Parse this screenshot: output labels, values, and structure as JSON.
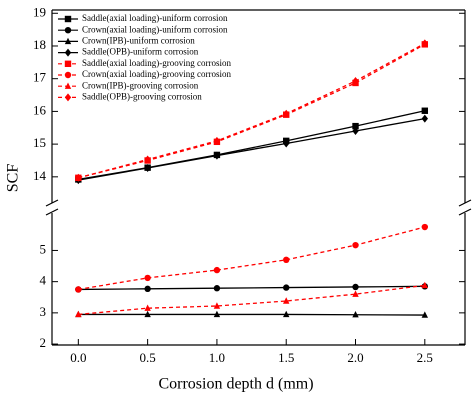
{
  "chart_data": {
    "type": "line",
    "xlabel": "Corrosion depth d (mm)",
    "ylabel": "SCF",
    "x": [
      0,
      0.5,
      1,
      1.5,
      2,
      2.5
    ],
    "xlim": [
      -0.19,
      2.79
    ],
    "xticks": [
      {
        "value": 0,
        "label": "0.0"
      },
      0.5,
      {
        "value": 1,
        "label": "1.0"
      },
      1.5,
      {
        "value": 2,
        "label": "2.0"
      },
      2.5
    ],
    "panels": [
      {
        "ylim": [
          13.2,
          19.1
        ],
        "yticks": [
          14,
          15,
          16,
          17,
          18,
          19
        ]
      },
      {
        "ylim": [
          1.97,
          6.2
        ],
        "yticks": [
          2,
          3,
          4,
          5
        ]
      }
    ],
    "legend": "upper left",
    "series": [
      {
        "name": "Saddle(axial loading)-uniform corrosion",
        "color": "#000000",
        "marker": "square",
        "dash": "solid",
        "panel": 0,
        "values": [
          13.92,
          14.28,
          14.67,
          15.1,
          15.55,
          16.02
        ]
      },
      {
        "name": "Crown(axial loading)-uniform corrosion",
        "color": "#000000",
        "marker": "circle",
        "dash": "solid",
        "panel": 1,
        "values": [
          3.75,
          3.77,
          3.79,
          3.81,
          3.83,
          3.85
        ]
      },
      {
        "name": "Crown(IPB)-uniform corrosion",
        "color": "#000000",
        "marker": "triangle",
        "dash": "solid",
        "panel": 1,
        "values": [
          2.95,
          2.95,
          2.95,
          2.95,
          2.94,
          2.93
        ]
      },
      {
        "name": "Saddle(OPB)-uniform corrosion",
        "color": "#000000",
        "marker": "diamond",
        "dash": "solid",
        "panel": 0,
        "values": [
          13.9,
          14.27,
          14.65,
          15.02,
          15.4,
          15.78
        ]
      },
      {
        "name": "Saddle(axial loading)-grooving corrosion",
        "color": "#ff0000",
        "marker": "square",
        "dash": "dashed",
        "panel": 0,
        "values": [
          13.97,
          14.5,
          15.07,
          15.9,
          16.87,
          18.05
        ]
      },
      {
        "name": "Crown(axial loading)-grooving corrosion",
        "color": "#ff0000",
        "marker": "circle",
        "dash": "dashed",
        "panel": 1,
        "values": [
          3.75,
          4.12,
          4.37,
          4.7,
          5.17,
          5.75
        ]
      },
      {
        "name": "Crown(IPB)-grooving corrosion",
        "color": "#ff0000",
        "marker": "triangle",
        "dash": "dashed",
        "panel": 1,
        "values": [
          2.95,
          3.15,
          3.22,
          3.38,
          3.6,
          3.88
        ]
      },
      {
        "name": "Saddle(OPB)-grooving corrosion",
        "color": "#ff0000",
        "marker": "diamond",
        "dash": "dashed",
        "panel": 0,
        "values": [
          13.97,
          14.53,
          15.1,
          15.93,
          16.93,
          18.08
        ]
      }
    ]
  }
}
